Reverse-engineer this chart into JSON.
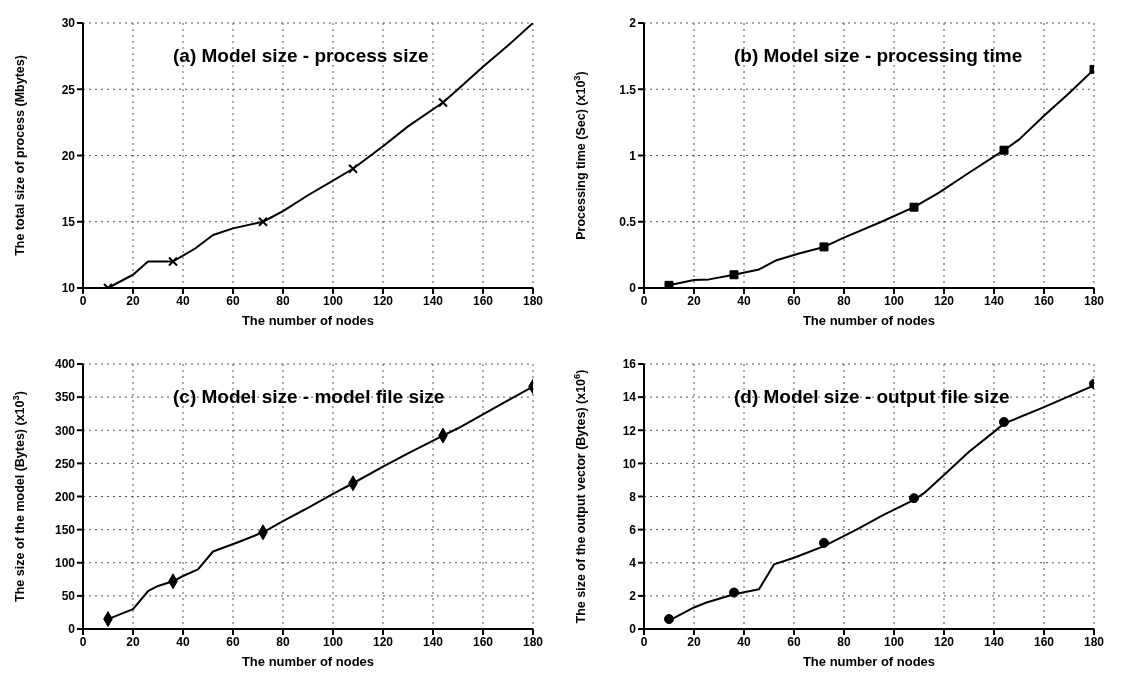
{
  "chart_data": [
    {
      "type": "line",
      "title": "(a) Model size - process size",
      "xlabel": "The number of nodes",
      "ylabel": "The total size of process (Mbytes)",
      "xlim": [
        0,
        180
      ],
      "xticks": [
        0,
        20,
        40,
        60,
        80,
        100,
        120,
        140,
        160,
        180
      ],
      "ylim": [
        10,
        30
      ],
      "yticks": [
        10,
        15,
        20,
        25,
        30
      ],
      "grid": true,
      "series": [
        {
          "type": "line",
          "color": "#000000",
          "x": [
            10,
            20,
            26,
            33,
            36,
            45,
            52,
            60,
            72,
            80,
            90,
            100,
            108,
            120,
            130,
            144,
            150,
            160,
            170,
            180
          ],
          "values": [
            10,
            11,
            12,
            12,
            12,
            13,
            14,
            14.5,
            15,
            15.8,
            17,
            18.1,
            19,
            20.7,
            22.2,
            24,
            25,
            26.7,
            28.3,
            30
          ]
        },
        {
          "type": "scatter",
          "marker": "cross",
          "color": "#000000",
          "x": [
            10,
            36,
            72,
            108,
            144
          ],
          "values": [
            10,
            12,
            15,
            19,
            24
          ]
        }
      ]
    },
    {
      "type": "line",
      "title": "(b) Model size - processing time",
      "xlabel": "The number of nodes",
      "ylabel": "Processing time (Sec) (x10$^{3}$)",
      "xlim": [
        0,
        180
      ],
      "xticks": [
        0,
        20,
        40,
        60,
        80,
        100,
        120,
        140,
        160,
        180
      ],
      "ylim": [
        0,
        2
      ],
      "yticks": [
        0,
        0.5,
        1,
        1.5,
        2
      ],
      "grid": true,
      "series": [
        {
          "type": "line",
          "color": "#000000",
          "x": [
            10,
            20,
            26,
            36,
            46,
            53,
            62,
            72,
            80,
            95,
            108,
            118,
            130,
            144,
            150,
            160,
            170,
            180
          ],
          "values": [
            0.02,
            0.06,
            0.065,
            0.1,
            0.14,
            0.21,
            0.26,
            0.31,
            0.38,
            0.5,
            0.61,
            0.72,
            0.87,
            1.04,
            1.12,
            1.3,
            1.47,
            1.65
          ]
        },
        {
          "type": "scatter",
          "marker": "square",
          "color": "#000000",
          "x": [
            10,
            36,
            72,
            108,
            144,
            180
          ],
          "values": [
            0.02,
            0.1,
            0.31,
            0.61,
            1.04,
            1.65
          ]
        }
      ]
    },
    {
      "type": "line",
      "title": "(c) Model size - model file size",
      "xlabel": "The number of nodes",
      "ylabel": "The size of the model (Bytes) (x10$^{3}$)",
      "xlim": [
        0,
        180
      ],
      "xticks": [
        0,
        20,
        40,
        60,
        80,
        100,
        120,
        140,
        160,
        180
      ],
      "ylim": [
        0,
        400
      ],
      "yticks": [
        0,
        50,
        100,
        150,
        200,
        250,
        300,
        350,
        400
      ],
      "grid": true,
      "series": [
        {
          "type": "line",
          "color": "#000000",
          "x": [
            10,
            20,
            26,
            30,
            36,
            40,
            46,
            52,
            62,
            72,
            80,
            90,
            100,
            108,
            120,
            130,
            144,
            150,
            160,
            170,
            180
          ],
          "values": [
            15,
            30,
            57,
            65,
            72,
            80,
            90,
            117,
            131,
            146,
            163,
            183,
            204,
            220,
            245,
            265,
            292,
            303,
            324,
            345,
            366
          ]
        },
        {
          "type": "scatter",
          "marker": "diamond",
          "color": "#000000",
          "x": [
            10,
            36,
            72,
            108,
            144,
            180
          ],
          "values": [
            15,
            72,
            146,
            220,
            292,
            366
          ]
        }
      ]
    },
    {
      "type": "line",
      "title": "(d) Model size - output file size",
      "xlabel": "The number of nodes",
      "ylabel": "The size of the output vector (Bytes) (x10$^{6}$)",
      "xlim": [
        0,
        180
      ],
      "xticks": [
        0,
        20,
        40,
        60,
        80,
        100,
        120,
        140,
        160,
        180
      ],
      "ylim": [
        0,
        16
      ],
      "yticks": [
        0,
        2,
        4,
        6,
        8,
        10,
        12,
        14,
        16
      ],
      "grid": true,
      "series": [
        {
          "type": "line",
          "color": "#000000",
          "x": [
            10,
            20,
            25,
            36,
            46,
            52,
            60,
            72,
            85,
            96,
            108,
            112,
            120,
            130,
            140,
            144,
            160,
            180
          ],
          "values": [
            0.5,
            1.3,
            1.6,
            2.1,
            2.4,
            3.9,
            4.3,
            5,
            6,
            6.9,
            7.8,
            8.2,
            9.3,
            10.7,
            11.9,
            12.4,
            13.4,
            14.7
          ]
        },
        {
          "type": "scatter",
          "marker": "circle",
          "color": "#000000",
          "x": [
            10,
            36,
            72,
            108,
            144,
            180
          ],
          "values": [
            0.6,
            2.2,
            5.2,
            7.9,
            12.5,
            14.8
          ]
        }
      ]
    }
  ]
}
